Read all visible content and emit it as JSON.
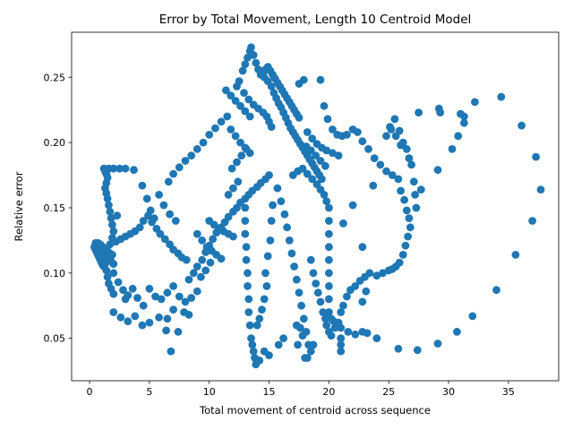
{
  "chart_data": {
    "type": "scatter",
    "title": "Error by Total Movement, Length 10 Centroid Model",
    "xlabel": "Total movement of centroid across sequence",
    "ylabel": "Relative error",
    "xlim": [
      -1.5,
      39.2
    ],
    "ylim": [
      0.0175,
      0.2845
    ],
    "xticks": [
      "0",
      "5",
      "10",
      "15",
      "20",
      "25",
      "30",
      "35"
    ],
    "xtick_values": [
      0,
      5,
      10,
      15,
      20,
      25,
      30,
      35
    ],
    "yticks": [
      "0.05",
      "0.10",
      "0.15",
      "0.20",
      "0.25"
    ],
    "ytick_values": [
      0.05,
      0.1,
      0.15,
      0.2,
      0.25
    ],
    "grid": false,
    "marker_color": "#1f77b4",
    "points": [
      [
        0.4,
        0.12
      ],
      [
        0.5,
        0.118
      ],
      [
        0.6,
        0.116
      ],
      [
        0.7,
        0.114
      ],
      [
        0.8,
        0.112
      ],
      [
        0.9,
        0.11
      ],
      [
        1.0,
        0.108
      ],
      [
        1.1,
        0.106
      ],
      [
        1.2,
        0.105
      ],
      [
        0.5,
        0.123
      ],
      [
        0.7,
        0.123
      ],
      [
        0.9,
        0.122
      ],
      [
        1.1,
        0.12
      ],
      [
        1.3,
        0.118
      ],
      [
        1.5,
        0.116
      ],
      [
        1.7,
        0.115
      ],
      [
        1.9,
        0.114
      ],
      [
        0.6,
        0.121
      ],
      [
        0.8,
        0.119
      ],
      [
        1.0,
        0.117
      ],
      [
        1.2,
        0.115
      ],
      [
        1.4,
        0.113
      ],
      [
        1.6,
        0.111
      ],
      [
        1.8,
        0.109
      ],
      [
        2.0,
        0.107
      ],
      [
        1.2,
        0.18
      ],
      [
        1.3,
        0.178
      ],
      [
        1.4,
        0.176
      ],
      [
        1.5,
        0.173
      ],
      [
        1.4,
        0.169
      ],
      [
        1.3,
        0.165
      ],
      [
        1.4,
        0.161
      ],
      [
        1.5,
        0.157
      ],
      [
        1.6,
        0.152
      ],
      [
        1.7,
        0.147
      ],
      [
        1.8,
        0.142
      ],
      [
        1.9,
        0.137
      ],
      [
        2.0,
        0.132
      ],
      [
        1.9,
        0.127
      ],
      [
        1.7,
        0.122
      ],
      [
        1.5,
        0.117
      ],
      [
        1.4,
        0.112
      ],
      [
        1.3,
        0.107
      ],
      [
        1.4,
        0.102
      ],
      [
        1.5,
        0.097
      ],
      [
        1.6,
        0.092
      ],
      [
        1.8,
        0.088
      ],
      [
        2.0,
        0.084
      ],
      [
        1.6,
        0.18
      ],
      [
        2.0,
        0.18
      ],
      [
        2.5,
        0.18
      ],
      [
        3.0,
        0.18
      ],
      [
        3.7,
        0.179
      ],
      [
        2.2,
        0.124
      ],
      [
        2.6,
        0.126
      ],
      [
        3.0,
        0.128
      ],
      [
        3.4,
        0.13
      ],
      [
        3.8,
        0.132
      ],
      [
        4.2,
        0.135
      ],
      [
        4.5,
        0.14
      ],
      [
        4.9,
        0.144
      ],
      [
        5.2,
        0.139
      ],
      [
        5.6,
        0.134
      ],
      [
        5.9,
        0.13
      ],
      [
        6.3,
        0.126
      ],
      [
        6.7,
        0.122
      ],
      [
        7.0,
        0.118
      ],
      [
        7.4,
        0.115
      ],
      [
        7.7,
        0.112
      ],
      [
        8.1,
        0.11
      ],
      [
        4.4,
        0.167
      ],
      [
        4.8,
        0.157
      ],
      [
        5.1,
        0.148
      ],
      [
        5.4,
        0.142
      ],
      [
        5.8,
        0.16
      ],
      [
        6.2,
        0.152
      ],
      [
        6.7,
        0.145
      ],
      [
        7.2,
        0.14
      ],
      [
        6.6,
        0.17
      ],
      [
        7.0,
        0.176
      ],
      [
        7.5,
        0.181
      ],
      [
        8.0,
        0.186
      ],
      [
        8.5,
        0.19
      ],
      [
        9.0,
        0.195
      ],
      [
        9.5,
        0.2
      ],
      [
        10.0,
        0.206
      ],
      [
        10.5,
        0.211
      ],
      [
        11.0,
        0.216
      ],
      [
        11.5,
        0.22
      ],
      [
        2.3,
        0.144
      ],
      [
        2.0,
        0.1
      ],
      [
        2.4,
        0.093
      ],
      [
        2.8,
        0.087
      ],
      [
        3.2,
        0.083
      ],
      [
        3.6,
        0.088
      ],
      [
        4.0,
        0.081
      ],
      [
        4.5,
        0.075
      ],
      [
        5.0,
        0.088
      ],
      [
        5.5,
        0.082
      ],
      [
        6.0,
        0.08
      ],
      [
        6.5,
        0.085
      ],
      [
        7.0,
        0.09
      ],
      [
        7.5,
        0.082
      ],
      [
        8.0,
        0.078
      ],
      [
        8.5,
        0.081
      ],
      [
        9.0,
        0.086
      ],
      [
        3.0,
        0.08
      ],
      [
        4.4,
        0.06
      ],
      [
        5.0,
        0.062
      ],
      [
        5.8,
        0.066
      ],
      [
        6.5,
        0.065
      ],
      [
        7.0,
        0.072
      ],
      [
        6.8,
        0.04
      ],
      [
        6.4,
        0.056
      ],
      [
        7.4,
        0.055
      ],
      [
        7.9,
        0.07
      ],
      [
        8.3,
        0.068
      ],
      [
        2.0,
        0.07
      ],
      [
        2.6,
        0.066
      ],
      [
        3.2,
        0.063
      ],
      [
        3.8,
        0.067
      ],
      [
        8.3,
        0.095
      ],
      [
        8.7,
        0.1
      ],
      [
        9.0,
        0.105
      ],
      [
        9.4,
        0.11
      ],
      [
        9.7,
        0.116
      ],
      [
        10.0,
        0.121
      ],
      [
        10.3,
        0.126
      ],
      [
        10.6,
        0.131
      ],
      [
        11.0,
        0.135
      ],
      [
        11.3,
        0.139
      ],
      [
        11.6,
        0.143
      ],
      [
        12.0,
        0.147
      ],
      [
        12.3,
        0.15
      ],
      [
        12.6,
        0.154
      ],
      [
        13.0,
        0.157
      ],
      [
        13.3,
        0.16
      ],
      [
        13.6,
        0.163
      ],
      [
        14.0,
        0.166
      ],
      [
        14.3,
        0.169
      ],
      [
        14.7,
        0.172
      ],
      [
        15.0,
        0.175
      ],
      [
        9.0,
        0.13
      ],
      [
        9.4,
        0.125
      ],
      [
        9.8,
        0.12
      ],
      [
        10.2,
        0.117
      ],
      [
        10.6,
        0.114
      ],
      [
        11.0,
        0.111
      ],
      [
        10.0,
        0.14
      ],
      [
        10.4,
        0.137
      ],
      [
        10.8,
        0.134
      ],
      [
        11.2,
        0.132
      ],
      [
        11.6,
        0.13
      ],
      [
        12.0,
        0.128
      ],
      [
        9.3,
        0.097
      ],
      [
        9.7,
        0.102
      ],
      [
        10.1,
        0.108
      ],
      [
        11.4,
        0.24
      ],
      [
        11.8,
        0.236
      ],
      [
        12.2,
        0.232
      ],
      [
        12.6,
        0.228
      ],
      [
        13.0,
        0.224
      ],
      [
        13.4,
        0.22
      ],
      [
        11.8,
        0.21
      ],
      [
        12.2,
        0.205
      ],
      [
        12.6,
        0.2
      ],
      [
        13.0,
        0.196
      ],
      [
        13.4,
        0.192
      ],
      [
        11.9,
        0.18
      ],
      [
        12.3,
        0.185
      ],
      [
        12.7,
        0.19
      ],
      [
        13.1,
        0.195
      ],
      [
        11.6,
        0.16
      ],
      [
        12.0,
        0.165
      ],
      [
        12.4,
        0.17
      ],
      [
        12.8,
        0.255
      ],
      [
        13.0,
        0.26
      ],
      [
        13.2,
        0.265
      ],
      [
        13.4,
        0.27
      ],
      [
        13.5,
        0.273
      ],
      [
        13.7,
        0.267
      ],
      [
        13.9,
        0.261
      ],
      [
        14.1,
        0.256
      ],
      [
        14.3,
        0.252
      ],
      [
        12.5,
        0.247
      ],
      [
        12.3,
        0.243
      ],
      [
        12.9,
        0.238
      ],
      [
        13.3,
        0.233
      ],
      [
        13.7,
        0.229
      ],
      [
        14.1,
        0.226
      ],
      [
        14.5,
        0.223
      ],
      [
        14.8,
        0.22
      ],
      [
        15.0,
        0.216
      ],
      [
        15.2,
        0.212
      ],
      [
        13.0,
        0.15
      ],
      [
        13.0,
        0.14
      ],
      [
        13.0,
        0.13
      ],
      [
        13.1,
        0.12
      ],
      [
        13.1,
        0.11
      ],
      [
        13.2,
        0.1
      ],
      [
        13.2,
        0.09
      ],
      [
        13.3,
        0.08
      ],
      [
        13.3,
        0.07
      ],
      [
        13.4,
        0.06
      ],
      [
        13.5,
        0.05
      ],
      [
        13.6,
        0.045
      ],
      [
        13.7,
        0.04
      ],
      [
        13.8,
        0.035
      ],
      [
        13.9,
        0.03
      ],
      [
        14.2,
        0.033
      ],
      [
        14.0,
        0.06
      ],
      [
        14.2,
        0.065
      ],
      [
        14.4,
        0.072
      ],
      [
        14.6,
        0.08
      ],
      [
        14.8,
        0.09
      ],
      [
        14.7,
        0.1
      ],
      [
        14.9,
        0.113
      ],
      [
        15.1,
        0.125
      ],
      [
        15.2,
        0.14
      ],
      [
        15.3,
        0.152
      ],
      [
        14.6,
        0.04
      ],
      [
        15.0,
        0.037
      ],
      [
        15.8,
        0.045
      ],
      [
        16.2,
        0.05
      ],
      [
        14.6,
        0.25
      ],
      [
        14.9,
        0.247
      ],
      [
        15.2,
        0.243
      ],
      [
        15.4,
        0.238
      ],
      [
        15.6,
        0.234
      ],
      [
        15.8,
        0.23
      ],
      [
        16.0,
        0.227
      ],
      [
        16.2,
        0.223
      ],
      [
        16.4,
        0.219
      ],
      [
        16.6,
        0.215
      ],
      [
        16.8,
        0.211
      ],
      [
        17.0,
        0.208
      ],
      [
        17.2,
        0.205
      ],
      [
        17.4,
        0.202
      ],
      [
        17.6,
        0.199
      ],
      [
        17.8,
        0.196
      ],
      [
        18.0,
        0.193
      ],
      [
        18.2,
        0.19
      ],
      [
        18.4,
        0.187
      ],
      [
        18.6,
        0.184
      ],
      [
        18.8,
        0.181
      ],
      [
        19.0,
        0.178
      ],
      [
        19.2,
        0.175
      ],
      [
        19.4,
        0.172
      ],
      [
        14.5,
        0.254
      ],
      [
        14.7,
        0.256
      ],
      [
        14.9,
        0.258
      ],
      [
        15.1,
        0.255
      ],
      [
        15.3,
        0.252
      ],
      [
        15.5,
        0.249
      ],
      [
        15.7,
        0.246
      ],
      [
        15.9,
        0.243
      ],
      [
        16.1,
        0.24
      ],
      [
        16.3,
        0.237
      ],
      [
        16.5,
        0.234
      ],
      [
        16.7,
        0.231
      ],
      [
        16.9,
        0.228
      ],
      [
        17.1,
        0.225
      ],
      [
        17.3,
        0.222
      ],
      [
        17.5,
        0.219
      ],
      [
        15.7,
        0.165
      ],
      [
        16.0,
        0.155
      ],
      [
        16.3,
        0.145
      ],
      [
        16.5,
        0.135
      ],
      [
        16.7,
        0.125
      ],
      [
        16.9,
        0.115
      ],
      [
        17.1,
        0.105
      ],
      [
        17.3,
        0.095
      ],
      [
        17.5,
        0.085
      ],
      [
        17.7,
        0.075
      ],
      [
        17.9,
        0.065
      ],
      [
        18.1,
        0.055
      ],
      [
        18.3,
        0.045
      ],
      [
        18.5,
        0.04
      ],
      [
        18.7,
        0.045
      ],
      [
        17.3,
        0.06
      ],
      [
        17.6,
        0.058
      ],
      [
        17.8,
        0.052
      ],
      [
        17.4,
        0.045
      ],
      [
        18.0,
        0.035
      ],
      [
        18.2,
        0.035
      ],
      [
        17.0,
        0.175
      ],
      [
        17.4,
        0.178
      ],
      [
        17.8,
        0.18
      ],
      [
        18.2,
        0.176
      ],
      [
        18.6,
        0.172
      ],
      [
        19.0,
        0.168
      ],
      [
        19.3,
        0.164
      ],
      [
        19.6,
        0.16
      ],
      [
        19.8,
        0.155
      ],
      [
        20.0,
        0.15
      ],
      [
        20.0,
        0.14
      ],
      [
        20.0,
        0.13
      ],
      [
        20.0,
        0.12
      ],
      [
        20.0,
        0.11
      ],
      [
        20.0,
        0.1
      ],
      [
        20.0,
        0.09
      ],
      [
        20.0,
        0.08
      ],
      [
        20.0,
        0.07
      ],
      [
        20.2,
        0.065
      ],
      [
        20.4,
        0.063
      ],
      [
        20.6,
        0.062
      ],
      [
        20.8,
        0.06
      ],
      [
        21.0,
        0.058
      ],
      [
        18.5,
        0.11
      ],
      [
        18.7,
        0.1
      ],
      [
        18.9,
        0.092
      ],
      [
        19.1,
        0.085
      ],
      [
        19.3,
        0.078
      ],
      [
        19.5,
        0.07
      ],
      [
        19.7,
        0.065
      ],
      [
        19.8,
        0.06
      ],
      [
        20.0,
        0.055
      ],
      [
        20.2,
        0.052
      ],
      [
        20.5,
        0.058
      ],
      [
        20.8,
        0.062
      ],
      [
        21.0,
        0.07
      ],
      [
        21.2,
        0.075
      ],
      [
        21.5,
        0.082
      ],
      [
        21.8,
        0.087
      ],
      [
        22.2,
        0.09
      ],
      [
        22.6,
        0.094
      ],
      [
        23.0,
        0.097
      ],
      [
        23.4,
        0.1
      ],
      [
        21.0,
        0.04
      ],
      [
        21.0,
        0.045
      ],
      [
        21.0,
        0.05
      ],
      [
        21.6,
        0.055
      ],
      [
        22.2,
        0.053
      ],
      [
        22.8,
        0.055
      ],
      [
        23.2,
        0.054
      ],
      [
        24.0,
        0.05
      ],
      [
        25.8,
        0.042
      ],
      [
        27.4,
        0.041
      ],
      [
        29.1,
        0.046
      ],
      [
        30.7,
        0.055
      ],
      [
        32.0,
        0.067
      ],
      [
        34.0,
        0.087
      ],
      [
        35.6,
        0.114
      ],
      [
        37.0,
        0.14
      ],
      [
        37.7,
        0.164
      ],
      [
        37.3,
        0.189
      ],
      [
        36.1,
        0.213
      ],
      [
        34.4,
        0.235
      ],
      [
        32.2,
        0.231
      ],
      [
        31.3,
        0.22
      ],
      [
        30.3,
        0.195
      ],
      [
        29.1,
        0.179
      ],
      [
        27.7,
        0.164
      ],
      [
        29.2,
        0.226
      ],
      [
        29.3,
        0.223
      ],
      [
        31.0,
        0.222
      ],
      [
        31.3,
        0.215
      ],
      [
        30.8,
        0.205
      ],
      [
        27.5,
        0.223
      ],
      [
        19.3,
        0.248
      ],
      [
        19.6,
        0.228
      ],
      [
        19.9,
        0.218
      ],
      [
        20.3,
        0.21
      ],
      [
        20.7,
        0.206
      ],
      [
        21.1,
        0.205
      ],
      [
        21.5,
        0.206
      ],
      [
        22.0,
        0.21
      ],
      [
        22.4,
        0.208
      ],
      [
        22.8,
        0.201
      ],
      [
        23.3,
        0.195
      ],
      [
        23.8,
        0.188
      ],
      [
        24.3,
        0.183
      ],
      [
        24.8,
        0.178
      ],
      [
        25.3,
        0.175
      ],
      [
        25.8,
        0.172
      ],
      [
        26.0,
        0.163
      ],
      [
        26.3,
        0.156
      ],
      [
        26.5,
        0.148
      ],
      [
        26.7,
        0.142
      ],
      [
        26.8,
        0.135
      ],
      [
        26.6,
        0.128
      ],
      [
        26.4,
        0.121
      ],
      [
        26.2,
        0.114
      ],
      [
        25.9,
        0.108
      ],
      [
        25.6,
        0.105
      ],
      [
        25.3,
        0.103
      ],
      [
        25.0,
        0.102
      ],
      [
        24.5,
        0.1
      ],
      [
        24.0,
        0.098
      ],
      [
        24.8,
        0.205
      ],
      [
        25.1,
        0.212
      ],
      [
        25.5,
        0.218
      ],
      [
        25.9,
        0.209
      ],
      [
        26.2,
        0.2
      ],
      [
        26.5,
        0.195
      ],
      [
        26.7,
        0.188
      ],
      [
        26.9,
        0.183
      ],
      [
        27.1,
        0.17
      ],
      [
        27.2,
        0.16
      ],
      [
        27.3,
        0.15
      ],
      [
        25.2,
        0.21
      ],
      [
        25.6,
        0.205
      ],
      [
        26.0,
        0.198
      ],
      [
        23.7,
        0.167
      ],
      [
        22.0,
        0.152
      ],
      [
        21.2,
        0.138
      ],
      [
        22.8,
        0.12
      ],
      [
        23.1,
        0.086
      ],
      [
        22.8,
        0.078
      ],
      [
        17.9,
        0.248
      ],
      [
        17.5,
        0.245
      ],
      [
        18.2,
        0.208
      ],
      [
        18.6,
        0.203
      ],
      [
        19.0,
        0.199
      ],
      [
        19.4,
        0.196
      ],
      [
        19.8,
        0.194
      ],
      [
        20.3,
        0.192
      ],
      [
        20.8,
        0.19
      ],
      [
        18.1,
        0.197
      ],
      [
        18.5,
        0.194
      ],
      [
        18.9,
        0.19
      ],
      [
        19.3,
        0.186
      ],
      [
        19.7,
        0.182
      ]
    ]
  }
}
